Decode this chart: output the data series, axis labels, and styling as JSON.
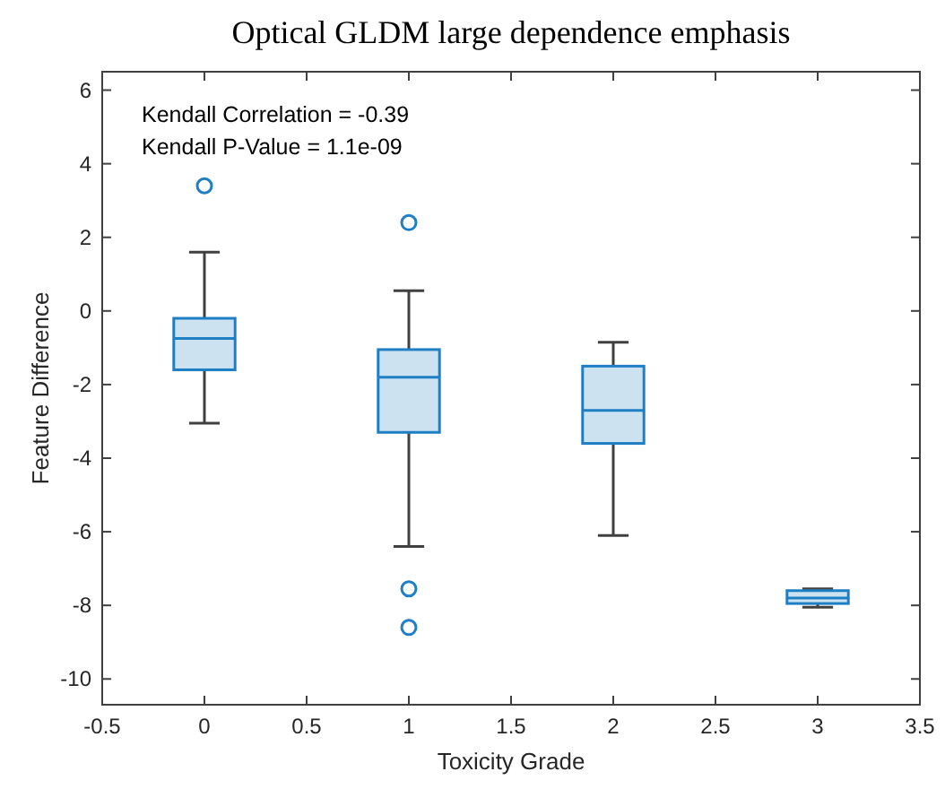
{
  "chart_data": {
    "type": "box",
    "title": "Optical GLDM large dependence emphasis",
    "xlabel": "Toxicity Grade",
    "ylabel": "Feature Difference",
    "x": [
      0,
      1,
      2,
      3
    ],
    "boxes": [
      {
        "low": -3.05,
        "q1": -1.6,
        "median": -0.75,
        "q3": -0.2,
        "high": 1.6,
        "outliers": [
          3.4
        ]
      },
      {
        "low": -6.4,
        "q1": -3.3,
        "median": -1.8,
        "q3": -1.05,
        "high": 0.55,
        "outliers": [
          2.4,
          -7.55,
          -8.6
        ]
      },
      {
        "low": -6.1,
        "q1": -3.6,
        "median": -2.7,
        "q3": -1.5,
        "high": -0.85
      },
      {
        "low": -8.05,
        "q1": -7.95,
        "median": -7.8,
        "q3": -7.6,
        "high": -7.55
      }
    ],
    "color": "#1f7fc4",
    "xlim": [
      -0.5,
      3.5
    ],
    "xticks": [
      -0.5,
      0,
      0.5,
      1,
      1.5,
      2,
      2.5,
      3,
      3.5
    ],
    "ylim": [
      -10.7,
      6.5
    ],
    "yticks": [
      -10,
      -8,
      -6,
      -4,
      -2,
      0,
      2,
      4,
      6
    ],
    "annotations": [
      "Kendall Correlation = -0.39",
      "Kendall P-Value = 1.1e-09"
    ],
    "grid": false
  }
}
